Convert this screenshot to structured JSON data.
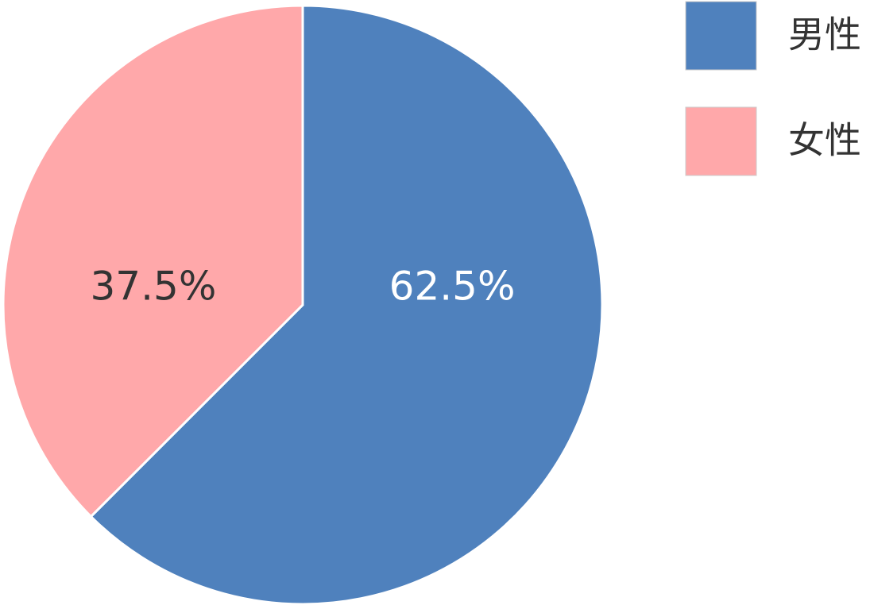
{
  "chart_data": {
    "type": "pie",
    "categories": [
      "男性",
      "女性"
    ],
    "values": [
      62.5,
      37.5
    ],
    "value_labels": [
      "62.5%",
      "37.5%"
    ],
    "colors": [
      "#4f81bd",
      "#ffa8aa"
    ]
  }
}
